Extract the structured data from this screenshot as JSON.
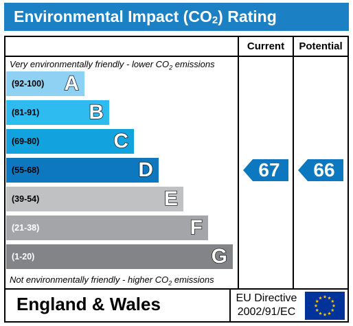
{
  "title": {
    "prefix": "Environmental Impact (CO",
    "sub": "2",
    "suffix": ") Rating"
  },
  "columns": {
    "current": "Current",
    "potential": "Potential"
  },
  "notes": {
    "top_prefix": "Very environmentally friendly - lower CO",
    "top_sub": "2",
    "top_suffix": " emissions",
    "bottom_prefix": "Not environmentally friendly - higher CO",
    "bottom_sub": "2",
    "bottom_suffix": " emissions"
  },
  "chart_data": {
    "type": "bar",
    "bands": [
      {
        "range": "(92-100)",
        "letter": "A",
        "color": "#8fd1f2",
        "range_color": "#000000"
      },
      {
        "range": "(81-91)",
        "letter": "B",
        "color": "#2ebbf0",
        "range_color": "#000000"
      },
      {
        "range": "(69-80)",
        "letter": "C",
        "color": "#12a2dd",
        "range_color": "#000000"
      },
      {
        "range": "(55-68)",
        "letter": "D",
        "color": "#0d78c0",
        "range_color": "#000000"
      },
      {
        "range": "(39-54)",
        "letter": "E",
        "color": "#c0c1c3",
        "range_color": "#000000"
      },
      {
        "range": "(21-38)",
        "letter": "F",
        "color": "#a3a5a8",
        "range_color": "#ffffff"
      },
      {
        "range": "(1-20)",
        "letter": "G",
        "color": "#828487",
        "range_color": "#ffffff"
      }
    ],
    "current": {
      "value": "67",
      "band": "D",
      "color": "#0d78c0"
    },
    "potential": {
      "value": "66",
      "band": "D",
      "color": "#0d78c0"
    }
  },
  "footer": {
    "region": "England & Wales",
    "directive_line1": "EU Directive",
    "directive_line2": "2002/91/EC"
  }
}
